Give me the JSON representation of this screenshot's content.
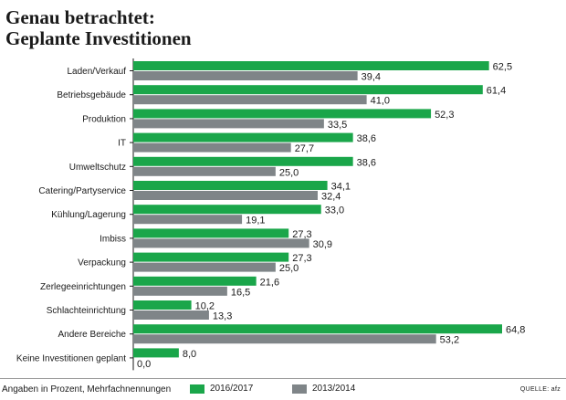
{
  "title": {
    "line1": "Genau betrachtet:",
    "line2": "Geplante Investitionen"
  },
  "chart_data": {
    "type": "bar",
    "orientation": "horizontal",
    "title": "Genau betrachtet: Geplante Investitionen",
    "categories": [
      "Laden/Verkauf",
      "Betriebsgebäude",
      "Produktion",
      "IT",
      "Umweltschutz",
      "Catering/Partyservice",
      "Kühlung/Lagerung",
      "Imbiss",
      "Verpackung",
      "Zerlegeeinrichtungen",
      "Schlachteinrichtung",
      "Andere Bereiche",
      "Keine Investitionen geplant"
    ],
    "series": [
      {
        "name": "2016/2017",
        "color": "#1aa64a",
        "values": [
          62.5,
          61.4,
          52.3,
          38.6,
          38.6,
          34.1,
          33.0,
          27.3,
          27.3,
          21.6,
          10.2,
          64.8,
          8.0
        ],
        "labels": [
          "62,5",
          "61,4",
          "52,3",
          "38,6",
          "38,6",
          "34,1",
          "33,0",
          "27,3",
          "27,3",
          "21,6",
          "10,2",
          "64,8",
          "8,0"
        ]
      },
      {
        "name": "2013/2014",
        "color": "#7f8588",
        "values": [
          39.4,
          41.0,
          33.5,
          27.7,
          25.0,
          32.4,
          19.1,
          30.9,
          25.0,
          16.5,
          13.3,
          53.2,
          0.0
        ],
        "labels": [
          "39,4",
          "41,0",
          "33,5",
          "27,7",
          "25,0",
          "32,4",
          "19,1",
          "30,9",
          "25,0",
          "16,5",
          "13,3",
          "53,2",
          "0,0"
        ]
      }
    ],
    "xlim": [
      0,
      64.8
    ],
    "grid": false,
    "legend_position": "bottom"
  },
  "footer": {
    "note": "Angaben in Prozent, Mehrfachnennungen",
    "source": "QUELLE: afz"
  }
}
